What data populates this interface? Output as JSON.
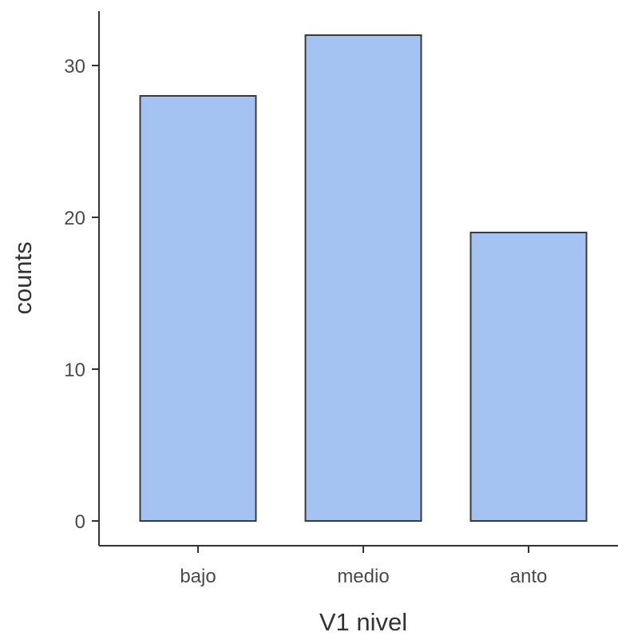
{
  "chart_data": {
    "type": "bar",
    "categories": [
      "bajo",
      "medio",
      "anto"
    ],
    "values": [
      28,
      32,
      19
    ],
    "xlabel": "V1 nivel",
    "ylabel": "counts",
    "ylim": [
      -1.6,
      35.5
    ],
    "yticks": [
      0,
      10,
      20,
      30
    ],
    "grid": false,
    "legend": "none",
    "colors": {
      "bar_fill": "#a4c3f2",
      "bar_stroke": "#3a3a3a",
      "axis": "#333333",
      "tick_label": "#4a4a4a"
    }
  }
}
